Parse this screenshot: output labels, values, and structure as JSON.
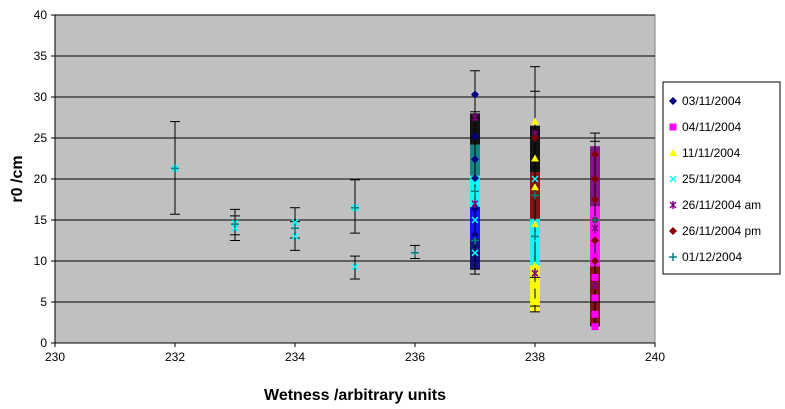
{
  "chart_data": {
    "type": "scatter",
    "title": "",
    "xlabel": "Wetness /arbitrary units",
    "ylabel": "r0 /cm",
    "xlim": [
      230,
      240
    ],
    "ylim": [
      0,
      40
    ],
    "xticks": [
      230,
      232,
      234,
      236,
      238,
      240
    ],
    "yticks": [
      0,
      5,
      10,
      15,
      20,
      25,
      30,
      35,
      40
    ],
    "grid": "horizontal",
    "legend_position": "right",
    "plot_background": "#c0c0c0",
    "series": [
      {
        "name": "03/11/2004",
        "color": "#000080",
        "marker": "diamond",
        "x": [
          237,
          237,
          237,
          237,
          237,
          237
        ],
        "y": [
          30.3,
          25.2,
          22.4,
          20.1,
          16.4,
          13.2
        ]
      },
      {
        "name": "04/11/2004",
        "color": "#ff00ff",
        "marker": "square",
        "x": [
          239,
          239,
          239,
          239,
          239,
          239
        ],
        "y": [
          2.0,
          3.5,
          5.5,
          8.0,
          10.5,
          13.0
        ]
      },
      {
        "name": "11/11/2004",
        "color": "#ffff00",
        "marker": "triangle",
        "x": [
          238,
          238,
          238,
          238,
          238,
          238,
          238
        ],
        "y": [
          27.0,
          22.5,
          19.0,
          14.5,
          9.5,
          7.0,
          5.0
        ]
      },
      {
        "name": "25/11/2004",
        "color": "#00ffff",
        "marker": "x",
        "x": [
          232,
          233,
          233,
          234,
          234,
          235,
          235,
          237,
          237,
          237,
          238,
          238
        ],
        "y": [
          21.3,
          14.6,
          14.0,
          14.7,
          13.0,
          16.5,
          9.3,
          19.5,
          15.0,
          11.0,
          20.0,
          12.5
        ]
      },
      {
        "name": "26/11/2004 am",
        "color": "#800080",
        "marker": "star",
        "x": [
          237,
          237,
          238,
          238,
          239,
          239
        ],
        "y": [
          27.5,
          17.0,
          25.5,
          8.5,
          14.0,
          7.0
        ]
      },
      {
        "name": "26/11/2004 pm",
        "color": "#800000",
        "marker": "diamond",
        "x": [
          238,
          239,
          239,
          239,
          239,
          239,
          239
        ],
        "y": [
          25.0,
          23.0,
          20.0,
          17.5,
          15.0,
          12.5,
          10.0
        ]
      },
      {
        "name": "01/12/2004",
        "color": "#008080",
        "marker": "plus",
        "x": [
          232,
          233,
          234,
          235,
          236,
          237,
          237,
          238,
          238,
          239
        ],
        "y": [
          21.3,
          14.5,
          14.0,
          16.5,
          11.0,
          18.5,
          12.5,
          18.0,
          13.0,
          15.0
        ]
      }
    ],
    "vertical_ranges": [
      {
        "x": 237,
        "y_from": 9.0,
        "y_to": 28.0,
        "colors": [
          "#000080",
          "#0000ff",
          "#00ffff",
          "#008080",
          "#000000"
        ]
      },
      {
        "x": 238,
        "y_from": 3.8,
        "y_to": 26.5,
        "colors": [
          "#ffff00",
          "#00ffff",
          "#800000",
          "#000000"
        ]
      },
      {
        "x": 239,
        "y_from": 2.0,
        "y_to": 24.0,
        "colors": [
          "#800000",
          "#ff00ff",
          "#800080"
        ]
      }
    ],
    "error_bars": [
      {
        "x": 232,
        "low": 15.7,
        "high": 27.0
      },
      {
        "x": 233,
        "low": 12.5,
        "high": 16.3
      },
      {
        "x": 233,
        "low": 13.2,
        "high": 15.5
      },
      {
        "x": 234,
        "low": 11.3,
        "high": 16.5
      },
      {
        "x": 234,
        "low": 12.8,
        "high": 14.8
      },
      {
        "x": 235,
        "low": 13.4,
        "high": 19.9
      },
      {
        "x": 235,
        "low": 7.8,
        "high": 10.6
      },
      {
        "x": 236,
        "low": 10.3,
        "high": 11.9
      },
      {
        "x": 237,
        "low": 8.4,
        "high": 33.2
      },
      {
        "x": 237,
        "low": 9.0,
        "high": 28.2
      },
      {
        "x": 238,
        "low": 3.8,
        "high": 33.7
      },
      {
        "x": 238,
        "low": 8.0,
        "high": 30.7
      },
      {
        "x": 238,
        "low": 4.5,
        "high": 25.8
      },
      {
        "x": 239,
        "low": 2.3,
        "high": 25.6
      },
      {
        "x": 239,
        "low": 5.0,
        "high": 24.6
      }
    ]
  }
}
